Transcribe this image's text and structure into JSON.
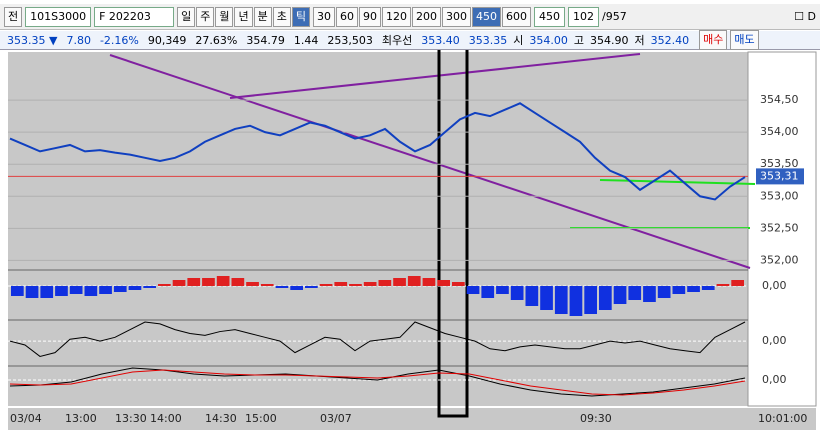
{
  "toolbar": {
    "mode": "전",
    "code": "101S3000",
    "contract": "F 202203",
    "periods": [
      "일",
      "주",
      "월",
      "년",
      "분",
      "초",
      "틱"
    ],
    "selected_period": "틱",
    "intervals": [
      "30",
      "60",
      "90",
      "120",
      "200",
      "300",
      "450",
      "600"
    ],
    "selected_interval": "450",
    "interval_value": "450",
    "count": "102",
    "total": "/957",
    "check": "D"
  },
  "quote": {
    "price": "353.35 ▼",
    "change": "7.80",
    "change_pct": "-2.16%",
    "volume": "90,349",
    "volume_pct": "27.63%",
    "v1": "354.79",
    "v2": "1.44",
    "v3": "253,503",
    "best": "최우선",
    "ask": "353.40",
    "bid": "353.35",
    "open_label": "시",
    "open": "354.00",
    "high_label": "고",
    "high": "354.90",
    "low_label": "저",
    "low": "352.40",
    "buy": "매수",
    "sell": "매도"
  },
  "chart": {
    "ylim": [
      351.85,
      355.25
    ],
    "yticks": [
      {
        "value": 354.5,
        "label": "354,50"
      },
      {
        "value": 354,
        "label": "354,00"
      },
      {
        "value": 353.5,
        "label": "353,50"
      },
      {
        "value": 353,
        "label": "353,00"
      },
      {
        "value": 352.5,
        "label": "352,50"
      },
      {
        "value": 352,
        "label": "352,00"
      }
    ],
    "current": {
      "value": 353.31,
      "label": "353,31"
    },
    "price": [
      353.9,
      353.8,
      353.7,
      353.75,
      353.8,
      353.7,
      353.72,
      353.68,
      353.65,
      353.6,
      353.55,
      353.6,
      353.7,
      353.85,
      353.95,
      354.05,
      354.1,
      354.0,
      353.95,
      354.05,
      354.15,
      354.1,
      354.0,
      353.9,
      353.95,
      354.05,
      353.85,
      353.7,
      353.8,
      354.0,
      354.2,
      354.3,
      354.25,
      354.35,
      354.45,
      354.3,
      354.15,
      354.0,
      353.85,
      353.6,
      353.4,
      353.3,
      353.1,
      353.25,
      353.4,
      353.2,
      353.0,
      352.95,
      353.15,
      353.3
    ],
    "hist_ylim": [
      -0.85,
      0.35
    ],
    "hist_zero": {
      "value": 0,
      "label": "0,00"
    },
    "hist": [
      -0.25,
      -0.3,
      -0.3,
      -0.25,
      -0.2,
      -0.25,
      -0.2,
      -0.15,
      -0.1,
      -0.05,
      0.05,
      0.15,
      0.2,
      0.2,
      0.25,
      0.2,
      0.1,
      0.05,
      -0.05,
      -0.1,
      -0.05,
      0.05,
      0.1,
      0.05,
      0.1,
      0.15,
      0.2,
      0.25,
      0.2,
      0.15,
      0.1,
      -0.2,
      -0.3,
      -0.2,
      -0.35,
      -0.5,
      -0.6,
      -0.7,
      -0.75,
      -0.7,
      -0.6,
      -0.45,
      -0.35,
      -0.4,
      -0.3,
      -0.2,
      -0.15,
      -0.1,
      0.05,
      0.15
    ],
    "osc_ylim": [
      -0.65,
      0.5
    ],
    "osc_zero": {
      "value": 0,
      "label": "0,00"
    },
    "osc": [
      0,
      -0.1,
      -0.4,
      -0.3,
      0.05,
      0.1,
      0,
      0.1,
      0.3,
      0.5,
      0.45,
      0.3,
      0.2,
      0.15,
      0.25,
      0.3,
      0.2,
      0.1,
      0,
      -0.3,
      -0.1,
      0.1,
      0.05,
      -0.25,
      0,
      0.05,
      0.1,
      0.5,
      0.35,
      0.2,
      0.1,
      0,
      -0.2,
      -0.25,
      -0.15,
      -0.1,
      -0.15,
      -0.2,
      -0.2,
      -0.1,
      0,
      -0.05,
      0,
      -0.1,
      -0.2,
      -0.25,
      -0.3,
      0.1,
      0.3,
      0.5
    ],
    "sig_ylim": [
      -1.3,
      0.6
    ],
    "sig_zero": {
      "value": 0,
      "label": "0,00"
    },
    "sig_series": [
      {
        "color": "#000000",
        "values": [
          -0.3,
          -0.25,
          -0.1,
          0.3,
          0.6,
          0.5,
          0.3,
          0.2,
          0.25,
          0.3,
          0.2,
          0.1,
          0,
          0.3,
          0.5,
          0.2,
          -0.2,
          -0.5,
          -0.7,
          -0.8,
          -0.7,
          -0.6,
          -0.4,
          -0.2,
          0.1
        ]
      },
      {
        "color": "#e00000",
        "values": [
          -0.2,
          -0.25,
          -0.2,
          0.1,
          0.4,
          0.5,
          0.4,
          0.3,
          0.25,
          0.25,
          0.2,
          0.15,
          0.1,
          0.2,
          0.35,
          0.3,
          0.0,
          -0.3,
          -0.5,
          -0.7,
          -0.75,
          -0.65,
          -0.5,
          -0.3,
          -0.05
        ]
      }
    ],
    "times": [
      "03/04",
      "13:00",
      "13:30",
      "14:00",
      "14:30",
      "15:00",
      "03/07",
      "09:30"
    ],
    "clock": "10:01:00"
  }
}
